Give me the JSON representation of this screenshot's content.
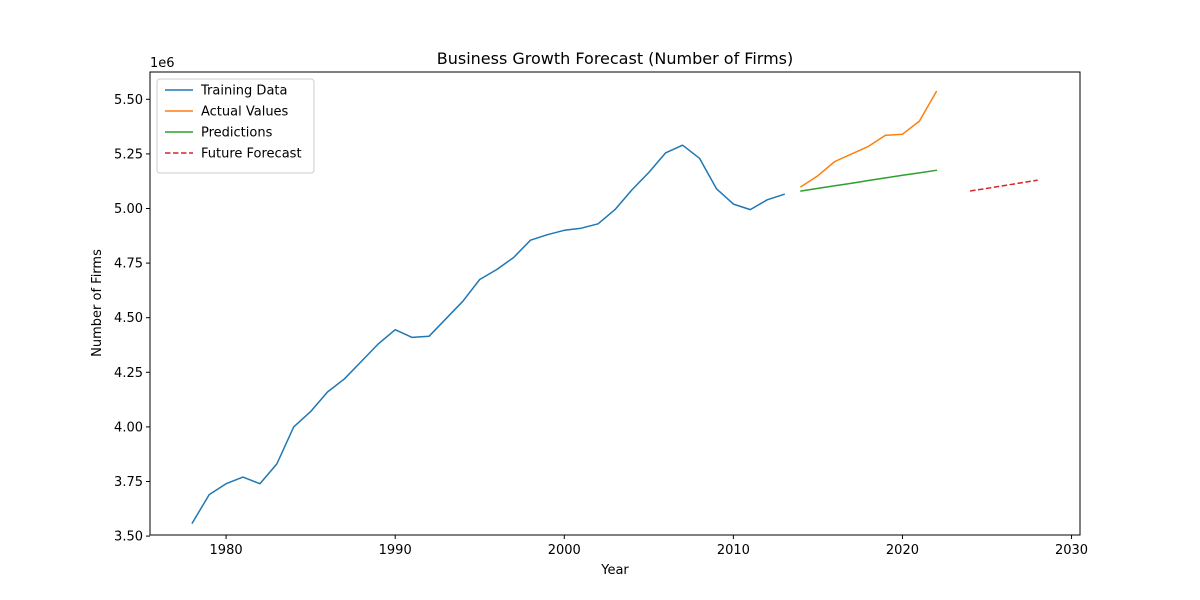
{
  "chart_data": {
    "type": "line",
    "title": "Business Growth Forecast (Number of Firms)",
    "xlabel": "Year",
    "ylabel": "Number of Firms",
    "y_offset_label": "1e6",
    "xlim": [
      1975.5,
      2030.5
    ],
    "ylim": [
      3.505,
      5.625
    ],
    "x_ticks": [
      1980,
      1990,
      2000,
      2010,
      2020,
      2030
    ],
    "y_ticks": [
      3.5,
      3.75,
      4.0,
      4.25,
      4.5,
      4.75,
      5.0,
      5.25,
      5.5
    ],
    "y_tick_labels": [
      "3.50",
      "3.75",
      "4.00",
      "4.25",
      "4.50",
      "4.75",
      "5.00",
      "5.25",
      "5.50"
    ],
    "grid": false,
    "legend_position": "upper-left",
    "series": [
      {
        "name": "Training Data",
        "color": "#1f77b4",
        "dash": "solid",
        "x": [
          1978,
          1979,
          1980,
          1981,
          1982,
          1983,
          1984,
          1985,
          1986,
          1987,
          1988,
          1989,
          1990,
          1991,
          1992,
          1993,
          1994,
          1995,
          1996,
          1997,
          1998,
          1999,
          2000,
          2001,
          2002,
          2003,
          2004,
          2005,
          2006,
          2007,
          2008,
          2009,
          2010,
          2011,
          2012,
          2013
        ],
        "y": [
          3.56,
          3.69,
          3.74,
          3.77,
          3.74,
          3.83,
          4.0,
          4.07,
          4.16,
          4.22,
          4.3,
          4.38,
          4.445,
          4.41,
          4.415,
          4.495,
          4.575,
          4.675,
          4.72,
          4.775,
          4.855,
          4.88,
          4.9,
          4.91,
          4.93,
          4.995,
          5.085,
          5.165,
          5.255,
          5.29,
          5.23,
          5.09,
          5.02,
          4.995,
          5.04,
          5.065
        ]
      },
      {
        "name": "Actual Values",
        "color": "#ff7f0e",
        "dash": "solid",
        "x": [
          2014,
          2015,
          2016,
          2017,
          2018,
          2019,
          2020,
          2021,
          2022
        ],
        "y": [
          5.1,
          5.15,
          5.215,
          5.25,
          5.285,
          5.335,
          5.34,
          5.4,
          5.535
        ]
      },
      {
        "name": "Predictions",
        "color": "#2ca02c",
        "dash": "solid",
        "x": [
          2014,
          2015,
          2016,
          2017,
          2018,
          2019,
          2020,
          2021,
          2022
        ],
        "y": [
          5.08,
          5.092,
          5.104,
          5.116,
          5.128,
          5.14,
          5.152,
          5.163,
          5.175
        ]
      },
      {
        "name": "Future Forecast",
        "color": "#d62728",
        "dash": "dashed",
        "x": [
          2024,
          2025,
          2026,
          2027,
          2028
        ],
        "y": [
          5.08,
          5.092,
          5.105,
          5.117,
          5.13
        ]
      }
    ]
  }
}
